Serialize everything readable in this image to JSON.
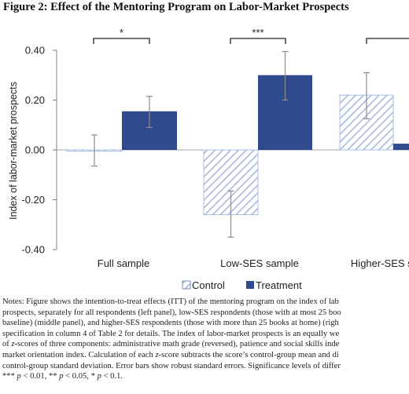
{
  "figure": {
    "title": "Figure 2: Effect of the Mentoring Program on Labor-Market Prospects"
  },
  "chart_data": {
    "type": "bar",
    "title": "",
    "ylabel": "Index of labor-market prospects",
    "ylim": [
      -0.4,
      0.4
    ],
    "yticks": [
      0.4,
      0.2,
      0.0,
      -0.2,
      -0.4
    ],
    "ytick_labels": [
      "0.40",
      "0.20",
      "0.00",
      "-0.20",
      "-0.40"
    ],
    "categories": [
      "Full sample",
      "Low-SES sample",
      "Higher-SES sample"
    ],
    "series": [
      {
        "name": "Control",
        "color": "#a9bde0",
        "pattern": "diagonal-hatch",
        "values": [
          0.0,
          -0.26,
          0.22
        ],
        "ci_low": [
          -0.065,
          -0.35,
          0.125
        ],
        "ci_high": [
          0.06,
          -0.165,
          0.31
        ]
      },
      {
        "name": "Treatment",
        "color": "#2f4b8d",
        "pattern": "solid",
        "values": [
          0.155,
          0.3,
          0.025
        ],
        "ci_low": [
          0.09,
          0.2,
          null
        ],
        "ci_high": [
          0.215,
          0.395,
          null
        ]
      }
    ],
    "significance": [
      "*",
      "***",
      ""
    ],
    "legend_position": "bottom",
    "grid": false
  },
  "notes": {
    "lines": [
      "Notes: Figure shows the intention-to-treat effects (ITT) of the mentoring program on the index of lab",
      "prospects, separately for all respondents (left panel), low-SES respondents (those with at most 25 boo",
      "baseline) (middle panel), and higher-SES respondents (those with more than 25 books at home) (righ",
      "specification in column 4 of Table 2 for details. The index of labor-market prospects is an equally we",
      "of z-scores of three components: administrative math grade (reversed), patience and social skills inde",
      "market orientation index. Calculation of each z-score subtracts the score’s control-group mean and di",
      "control-group standard deviation. Error bars show robust standard errors. Significance levels of differ",
      "*** p < 0.01, ** p < 0.05, * p < 0.1."
    ]
  }
}
